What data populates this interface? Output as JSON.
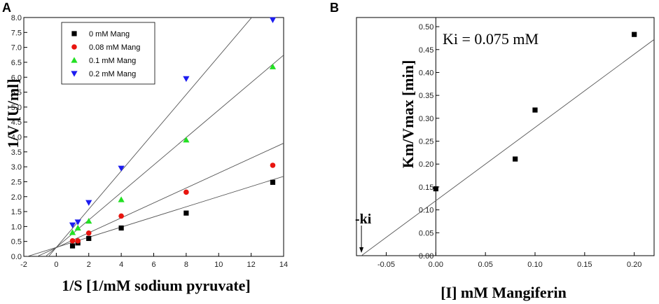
{
  "chart_data": [
    {
      "panel": "A",
      "type": "scatter",
      "xlabel": "1/S [1/mM sodium pyruvate]",
      "ylabel": "1/V [U/ml]",
      "xlim": [
        -2,
        14
      ],
      "ylim": [
        0.0,
        8.0
      ],
      "x_ticks": [
        -2,
        0,
        2,
        4,
        6,
        8,
        10,
        12,
        14
      ],
      "y_ticks": [
        0.0,
        0.5,
        1.0,
        1.5,
        2.0,
        2.5,
        3.0,
        3.5,
        4.0,
        4.5,
        5.0,
        5.5,
        6.0,
        6.5,
        7.0,
        7.5,
        8.0
      ],
      "legend_position": "top-left",
      "series": [
        {
          "name": "0 mM Mang",
          "marker": "square",
          "color": "#000000",
          "x": [
            1,
            1.33,
            2,
            4,
            8,
            13.33
          ],
          "y": [
            0.35,
            0.45,
            0.6,
            0.95,
            1.45,
            2.48
          ],
          "fit": {
            "intercept": 0.3,
            "slope": 0.17
          }
        },
        {
          "name": "0.08 mM Mang",
          "marker": "circle",
          "color": "#e8150f",
          "x": [
            1,
            1.33,
            2,
            4,
            8,
            13.33
          ],
          "y": [
            0.52,
            0.52,
            0.78,
            1.35,
            2.15,
            3.05
          ],
          "fit": {
            "intercept": 0.29,
            "slope": 0.25
          }
        },
        {
          "name": "0.1 mM Mang",
          "marker": "triangle-up",
          "color": "#22e022",
          "x": [
            1,
            1.33,
            2,
            4,
            8,
            13.33
          ],
          "y": [
            0.8,
            0.95,
            1.18,
            1.9,
            3.9,
            6.35
          ],
          "fit": {
            "intercept": 0.3,
            "slope": 0.46
          }
        },
        {
          "name": "0.2 mM Mang",
          "marker": "triangle-down",
          "color": "#1c1cf0",
          "x": [
            1,
            1.33,
            2,
            4,
            8,
            13.33
          ],
          "y": [
            1.05,
            1.15,
            1.8,
            2.95,
            5.95,
            7.92
          ],
          "fit": {
            "intercept": 0.3,
            "slope": 0.64
          }
        }
      ]
    },
    {
      "panel": "B",
      "type": "scatter",
      "xlabel": "[I] mM Mangiferin",
      "ylabel": "Km/Vmax [min]",
      "xlim": [
        -0.08,
        0.22
      ],
      "ylim": [
        0.0,
        0.52
      ],
      "x_ticks": [
        -0.05,
        0.0,
        0.05,
        0.1,
        0.15,
        0.2
      ],
      "y_ticks": [
        0.0,
        0.05,
        0.1,
        0.15,
        0.2,
        0.25,
        0.3,
        0.35,
        0.4,
        0.45,
        0.5
      ],
      "series": [
        {
          "name": "Km/Vmax",
          "marker": "square",
          "color": "#000000",
          "x": [
            0.0,
            0.08,
            0.1,
            0.2
          ],
          "y": [
            0.146,
            0.211,
            0.318,
            0.483
          ],
          "fit": {
            "intercept": 0.12,
            "slope": 1.6
          }
        }
      ],
      "annotations": {
        "ki_text": "Ki = 0.075 mM",
        "ki_arrow_label": "-ki",
        "ki_x": -0.075
      }
    }
  ],
  "panel_labels": {
    "a": "A",
    "b": "B"
  }
}
